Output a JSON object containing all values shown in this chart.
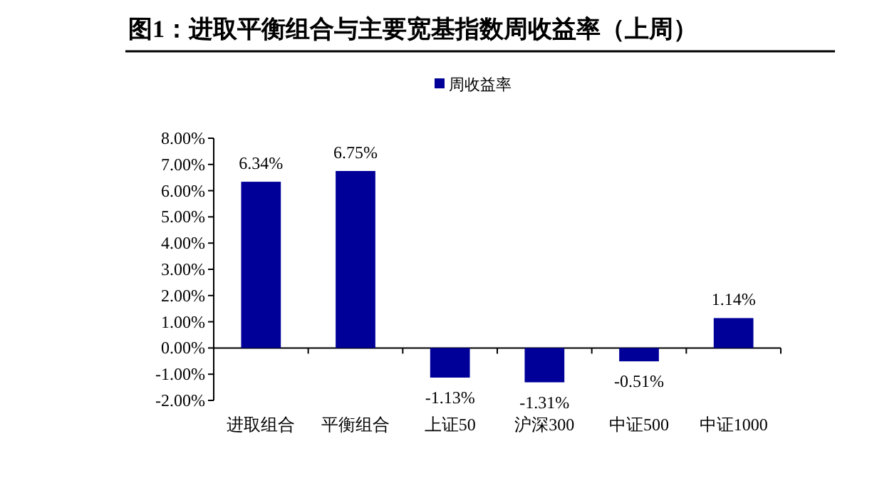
{
  "chart_data": {
    "type": "bar",
    "title": "图1：进取平衡组合与主要宽基指数周收益率（上周）",
    "categories": [
      "进取组合",
      "平衡组合",
      "上证50",
      "沪深300",
      "中证500",
      "中证1000"
    ],
    "series": [
      {
        "name": "周收益率",
        "color": "#000099",
        "values": [
          6.34,
          6.75,
          -1.13,
          -1.31,
          -0.51,
          1.14
        ],
        "value_labels": [
          "6.34%",
          "6.75%",
          "-1.13%",
          "-1.31%",
          "-0.51%",
          "1.14%"
        ]
      }
    ],
    "ylim": [
      -2,
      8
    ],
    "yticks": [
      {
        "value": -2,
        "label": "-2.00%"
      },
      {
        "value": -1,
        "label": "-1.00%"
      },
      {
        "value": 0,
        "label": "0.00%"
      },
      {
        "value": 1,
        "label": "1.00%"
      },
      {
        "value": 2,
        "label": "2.00%"
      },
      {
        "value": 3,
        "label": "3.00%"
      },
      {
        "value": 4,
        "label": "4.00%"
      },
      {
        "value": 5,
        "label": "5.00%"
      },
      {
        "value": 6,
        "label": "6.00%"
      },
      {
        "value": 7,
        "label": "7.00%"
      },
      {
        "value": 8,
        "label": "8.00%"
      }
    ],
    "legend": "top"
  }
}
